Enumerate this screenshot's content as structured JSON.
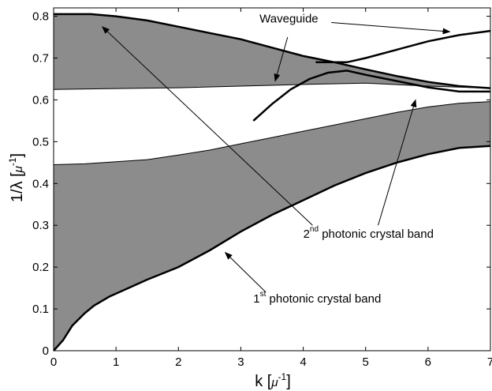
{
  "chart_data": {
    "type": "area",
    "title": "",
    "xlabel": {
      "main": "k [",
      "unit": "μ",
      "exp": "-1",
      "close": "]"
    },
    "ylabel": {
      "main": "1/λ [",
      "unit": "μ",
      "exp": "-1",
      "close": "]"
    },
    "xlim": [
      0,
      7
    ],
    "ylim": [
      0,
      0.82
    ],
    "xticks": [
      0,
      1,
      2,
      3,
      4,
      5,
      6,
      7
    ],
    "yticks": [
      0,
      0.1,
      0.2,
      0.3,
      0.4,
      0.5,
      0.6,
      0.7,
      0.8
    ],
    "xtick_labels": [
      "0",
      "1",
      "2",
      "3",
      "4",
      "5",
      "6",
      "7"
    ],
    "ytick_labels": [
      "0",
      "0.1",
      "0.2",
      "0.3",
      "0.4",
      "0.5",
      "0.6",
      "0.7",
      "0.8"
    ],
    "grid": false,
    "fill_color": "#8c8c8c",
    "bands": [
      {
        "id": "band1",
        "lower": {
          "x": [
            0,
            0.15,
            0.3,
            0.5,
            0.65,
            0.9,
            1.2,
            1.5,
            2.0,
            2.5,
            3.0,
            3.5,
            4.0,
            4.5,
            5.0,
            5.5,
            6.0,
            6.5,
            7.0
          ],
          "y": [
            0,
            0.025,
            0.06,
            0.09,
            0.108,
            0.13,
            0.15,
            0.17,
            0.2,
            0.24,
            0.285,
            0.325,
            0.36,
            0.395,
            0.425,
            0.45,
            0.47,
            0.485,
            0.49
          ]
        },
        "upper": {
          "x": [
            0,
            0.5,
            1.0,
            1.5,
            2.0,
            2.5,
            3.0,
            3.5,
            4.0,
            4.5,
            5.0,
            5.5,
            6.0,
            6.5,
            7.0
          ],
          "y": [
            0.445,
            0.447,
            0.452,
            0.457,
            0.468,
            0.48,
            0.495,
            0.51,
            0.525,
            0.54,
            0.555,
            0.57,
            0.583,
            0.592,
            0.596
          ]
        }
      },
      {
        "id": "band2",
        "lower": {
          "x": [
            0,
            1.0,
            2.0,
            3.0,
            4.0,
            5.0,
            6.0,
            7.0
          ],
          "y": [
            0.625,
            0.627,
            0.629,
            0.633,
            0.637,
            0.64,
            0.633,
            0.628
          ]
        },
        "upper": {
          "x": [
            0,
            0.6,
            1.0,
            1.5,
            2.0,
            2.5,
            3.0,
            3.5,
            4.0,
            4.5,
            5.0,
            5.5,
            6.0,
            6.5,
            7.0
          ],
          "y": [
            0.805,
            0.805,
            0.8,
            0.79,
            0.775,
            0.76,
            0.745,
            0.725,
            0.705,
            0.69,
            0.673,
            0.657,
            0.643,
            0.633,
            0.628
          ]
        }
      }
    ],
    "waveguide": [
      {
        "x": [
          3.2,
          3.5,
          3.8,
          4.1,
          4.4,
          4.7,
          5.0,
          5.5,
          6.0,
          6.5,
          7.0
        ],
        "y": [
          0.55,
          0.59,
          0.625,
          0.65,
          0.665,
          0.67,
          0.66,
          0.645,
          0.63,
          0.62,
          0.62
        ]
      },
      {
        "x": [
          4.2,
          4.7,
          5.0,
          5.5,
          6.0,
          6.5,
          7.0
        ],
        "y": [
          0.69,
          0.69,
          0.7,
          0.72,
          0.74,
          0.755,
          0.765
        ]
      }
    ],
    "annotations": [
      {
        "id": "waveguide",
        "text": "Waveguide",
        "sup": "",
        "rest": "",
        "anchor": [
          3.3,
          0.785
        ],
        "arrows": [
          {
            "from": [
              4.45,
              0.785
            ],
            "to": [
              6.35,
              0.763
            ]
          },
          {
            "from": [
              3.75,
              0.75
            ],
            "to": [
              3.55,
              0.645
            ]
          }
        ]
      },
      {
        "id": "band2",
        "text": "2",
        "sup": "nd",
        "rest": " photonic crystal band",
        "anchor": [
          4.0,
          0.27
        ],
        "arrows": [
          {
            "from": [
              4.15,
              0.3
            ],
            "to": [
              0.78,
              0.775
            ]
          },
          {
            "from": [
              5.2,
              0.3
            ],
            "to": [
              5.8,
              0.6
            ]
          }
        ]
      },
      {
        "id": "band1",
        "text": "1",
        "sup": "st",
        "rest": " photonic crystal band",
        "anchor": [
          3.2,
          0.115
        ],
        "arrows": [
          {
            "from": [
              3.4,
              0.14
            ],
            "to": [
              2.75,
              0.235
            ]
          }
        ]
      }
    ]
  }
}
